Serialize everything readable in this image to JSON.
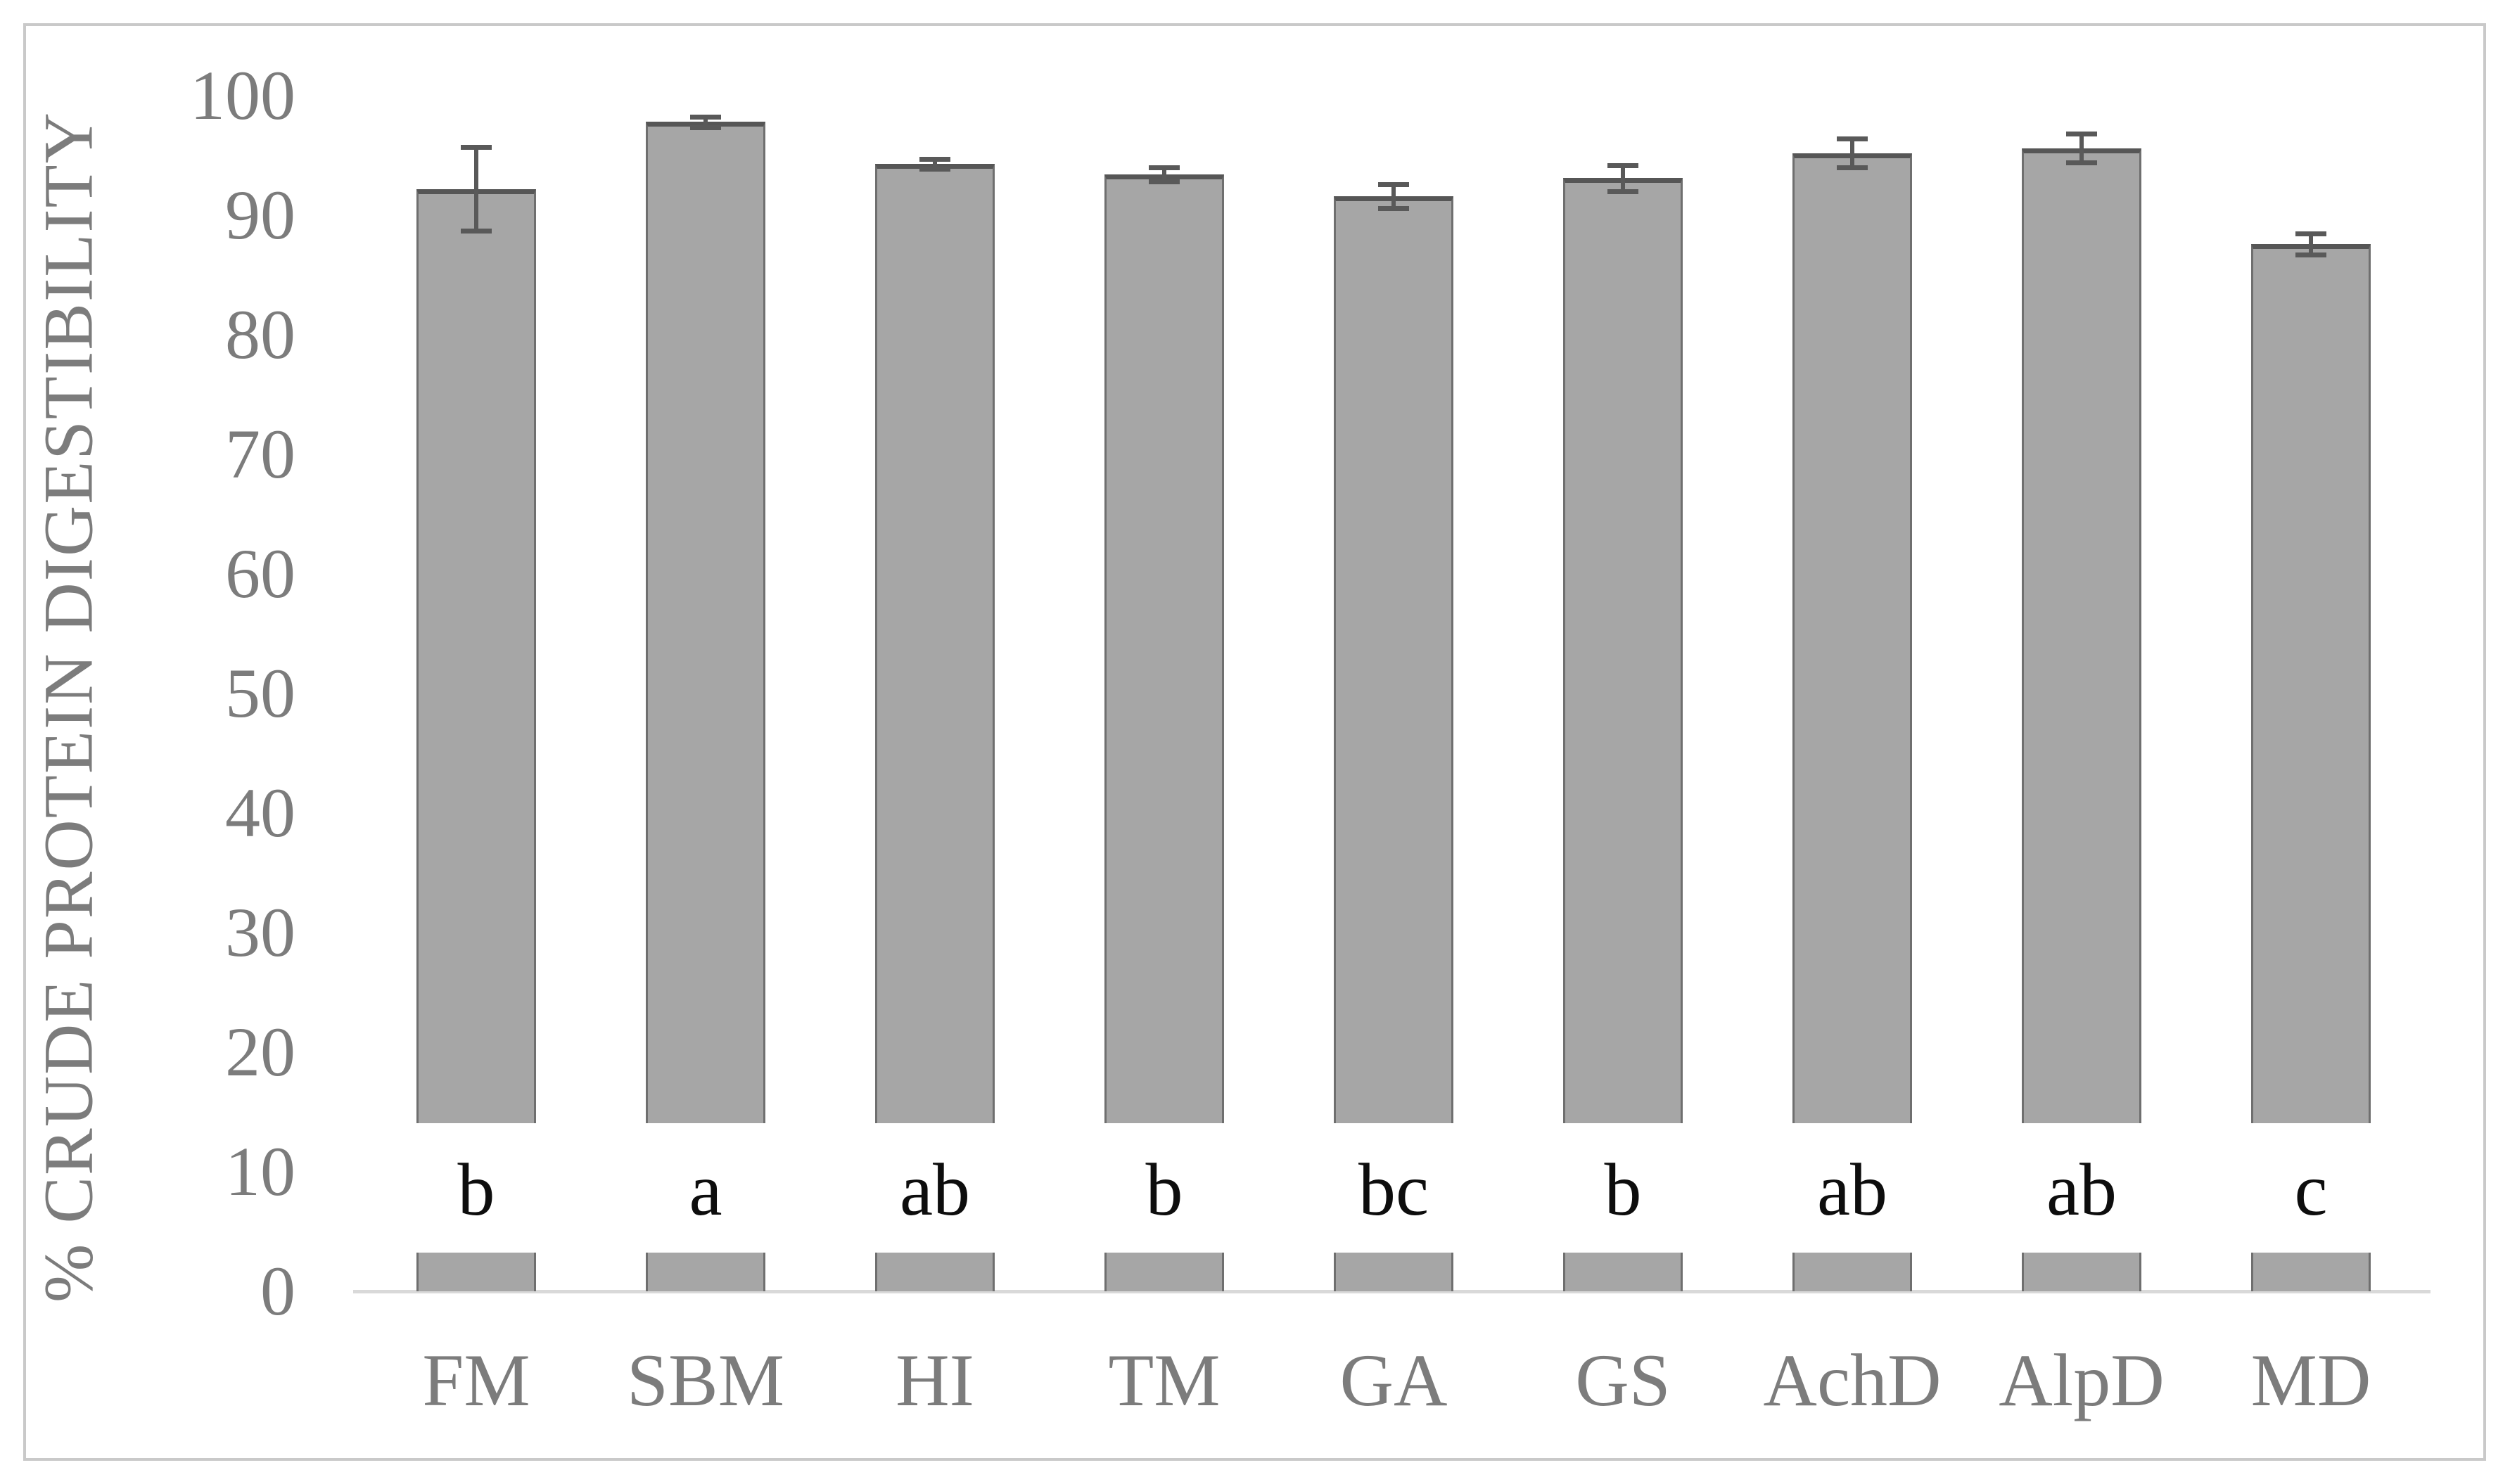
{
  "chart_data": {
    "type": "bar",
    "title": "",
    "xlabel": "",
    "ylabel": "% CRUDE PROTEIN DIGESTIBILITY",
    "ylim": [
      0,
      100
    ],
    "ytick_step": 10,
    "ytick_labels": [
      "0",
      "10",
      "20",
      "30",
      "40",
      "50",
      "60",
      "70",
      "80",
      "90",
      "100"
    ],
    "grid": false,
    "legend": "none",
    "categories": [
      "FM",
      "SBM",
      "HI",
      "TM",
      "GA",
      "GS",
      "AchD",
      "AlpD",
      "MD"
    ],
    "values": [
      92.2,
      97.8,
      94.3,
      93.4,
      91.6,
      93.1,
      95.2,
      95.6,
      87.6
    ],
    "error_bars": [
      3.5,
      0.45,
      0.4,
      0.6,
      1.0,
      1.1,
      1.2,
      1.2,
      0.9
    ],
    "significance_letters": [
      "b",
      "a",
      "ab",
      "b",
      "bc",
      "b",
      "ab",
      "ab",
      "c"
    ]
  },
  "colors": {
    "bar_fill": "#a6a6a6",
    "bar_border": "#6f6f6f",
    "bar_border_top": "#565656",
    "error_bar": "#595959",
    "axis_line": "#d9d9d9",
    "axis_text": "#7c7c7c",
    "significance_text": "#0d0d0d",
    "frame_border": "#c9c9c9",
    "background": "#ffffff"
  }
}
